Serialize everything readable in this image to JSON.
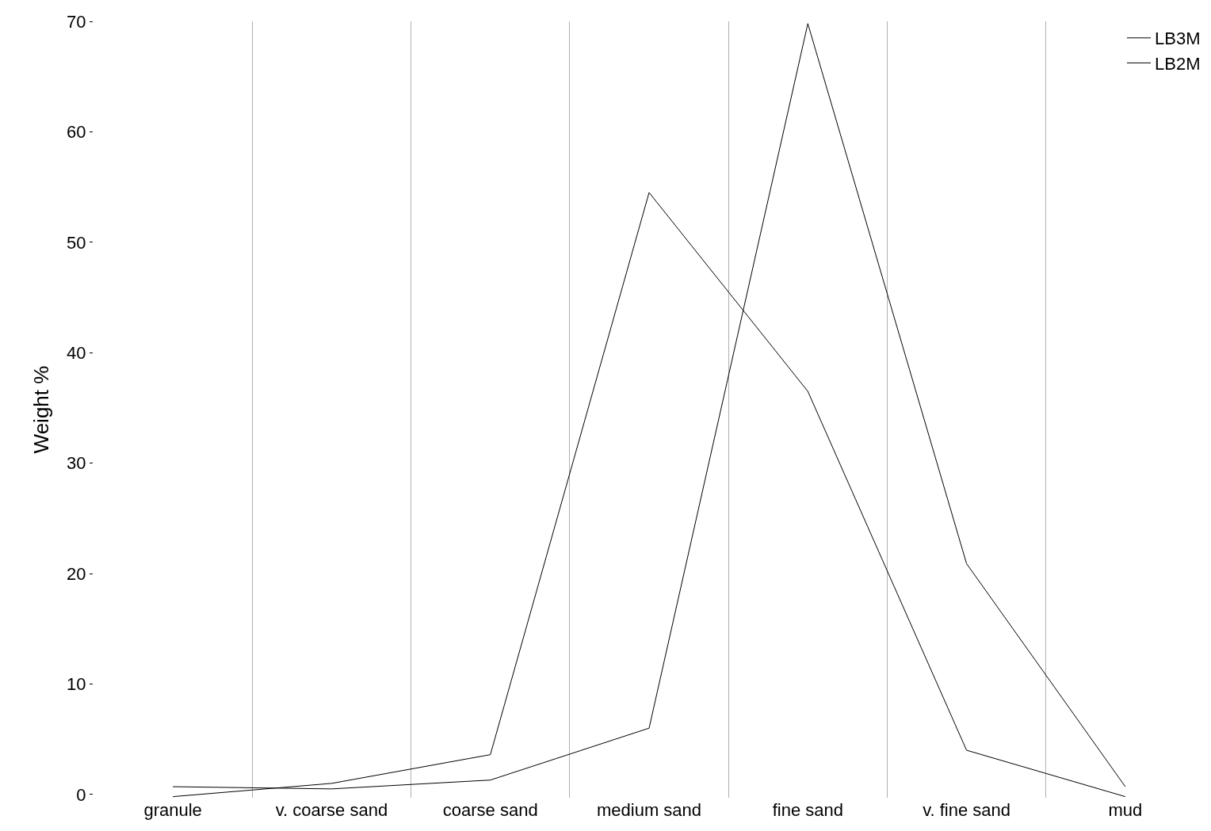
{
  "chart_data": {
    "type": "line",
    "ylabel": "Weight %",
    "categories": [
      "granule",
      "v. coarse sand",
      "coarse sand",
      "medium sand",
      "fine sand",
      "v. fine sand",
      "mud"
    ],
    "series": [
      {
        "name": "LB3M",
        "color": "#000000",
        "values": [
          -0.2,
          1.0,
          3.6,
          54.5,
          36.5,
          4.0,
          -0.2
        ]
      },
      {
        "name": "LB2M",
        "color": "#000000",
        "values": [
          0.7,
          0.5,
          1.3,
          6.0,
          69.8,
          20.9,
          0.7
        ]
      }
    ],
    "ylim": [
      -0.3,
      70
    ],
    "yticks": [
      0,
      10,
      20,
      30,
      40,
      50,
      60,
      70
    ],
    "grid": "x",
    "legend": "top right",
    "marker": "none",
    "line_style": "solid"
  }
}
